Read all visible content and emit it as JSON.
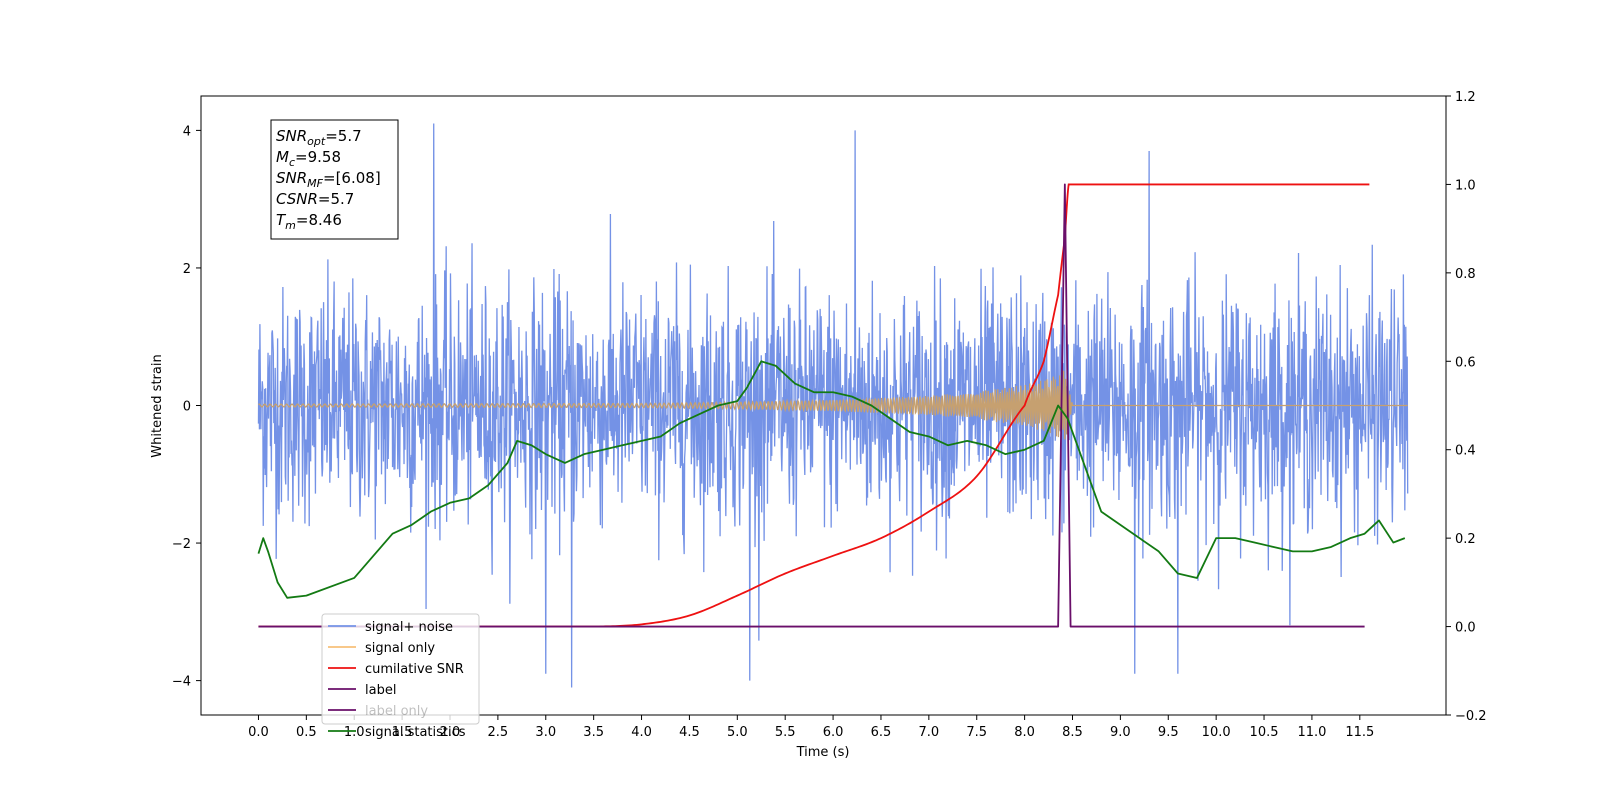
{
  "chart_data": {
    "type": "line",
    "xlabel": "Time (s)",
    "ylabel": "Whitened strain",
    "xlim": [
      -0.6,
      12.4
    ],
    "x_ticks": [
      "0.0",
      "0.5",
      "1.0",
      "1.5",
      "2.0",
      "2.5",
      "3.0",
      "3.5",
      "4.0",
      "4.5",
      "5.0",
      "5.5",
      "6.0",
      "6.5",
      "7.0",
      "7.5",
      "8.0",
      "8.5",
      "9.0",
      "9.5",
      "10.0",
      "10.5",
      "11.0",
      "11.5"
    ],
    "x_tick_values": [
      0.0,
      0.5,
      1.0,
      1.5,
      2.0,
      2.5,
      3.0,
      3.5,
      4.0,
      4.5,
      5.0,
      5.5,
      6.0,
      6.5,
      7.0,
      7.5,
      8.0,
      8.5,
      9.0,
      9.5,
      10.0,
      10.5,
      11.0,
      11.5
    ],
    "ylim_left": [
      -4.5,
      4.5
    ],
    "y_ticks_left": [
      "4",
      "2",
      "0",
      "−2",
      "−4"
    ],
    "y_tick_values_left": [
      4,
      2,
      0,
      -2,
      -4
    ],
    "ylim_right": [
      -0.2,
      1.2
    ],
    "y_ticks_right": [
      "1.2",
      "1.0",
      "0.8",
      "0.6",
      "0.4",
      "0.2",
      "0.0",
      "−0.2"
    ],
    "y_tick_values_right": [
      1.2,
      1.0,
      0.8,
      0.6,
      0.4,
      0.2,
      0.0,
      -0.2
    ],
    "info_box": [
      {
        "base": "SNR",
        "sub": "opt",
        "rest": "=5.7"
      },
      {
        "base": "M",
        "sub": "c",
        "rest": "=9.58"
      },
      {
        "base": "SNR",
        "sub": "MF",
        "rest": "=[6.08]"
      },
      {
        "base": "CSNR",
        "sub": "",
        "rest": "=5.7"
      },
      {
        "base": "T",
        "sub": "m",
        "rest": "=8.46"
      }
    ],
    "legend": {
      "placement": "lower-left",
      "entries": [
        {
          "label": "signal+ noise",
          "color": "#7492e6"
        },
        {
          "label": "signal only",
          "color": "#f7c07a"
        },
        {
          "label": "cumilative SNR",
          "color": "#ee1111"
        },
        {
          "label": "label",
          "color": "#6a0f6a"
        },
        {
          "label": "label only",
          "color": "#6a0f6a",
          "faded": true
        },
        {
          "label": "signal statistics",
          "color": "#137a13"
        }
      ]
    },
    "series": [
      {
        "name": "signal+ noise",
        "axis": "left",
        "color": "#7492e6",
        "kind": "noise-band",
        "t_start": 0.0,
        "t_end": 12.0,
        "rms": 0.85,
        "notable_peaks": [
          {
            "x": 1.83,
            "y": 4.1
          },
          {
            "x": 6.23,
            "y": 4.0
          },
          {
            "x": 9.3,
            "y": 3.7
          },
          {
            "x": 3.27,
            "y": -4.1
          },
          {
            "x": 5.13,
            "y": -4.0
          },
          {
            "x": 9.15,
            "y": -3.9
          },
          {
            "x": 9.6,
            "y": -3.9
          },
          {
            "x": 3.0,
            "y": -3.9
          }
        ]
      },
      {
        "name": "signal only",
        "axis": "left",
        "color": "#c6a070",
        "kind": "chirp-envelope",
        "envelope": {
          "x": [
            0.0,
            4.0,
            5.0,
            6.0,
            7.0,
            7.5,
            8.0,
            8.3,
            8.42,
            8.46,
            8.5,
            12.0
          ],
          "y": [
            0.02,
            0.03,
            0.05,
            0.08,
            0.14,
            0.2,
            0.3,
            0.42,
            0.55,
            0.3,
            0.0,
            0.0
          ]
        }
      },
      {
        "name": "cumilative SNR",
        "axis": "right",
        "color": "#ee1111",
        "x": [
          0.0,
          3.5,
          4.0,
          4.5,
          5.0,
          5.5,
          6.0,
          6.5,
          7.0,
          7.5,
          8.0,
          8.2,
          8.35,
          8.42,
          8.46,
          11.6
        ],
        "y": [
          0.0,
          0.0,
          0.005,
          0.025,
          0.07,
          0.12,
          0.16,
          0.2,
          0.26,
          0.34,
          0.5,
          0.6,
          0.75,
          0.88,
          1.0,
          1.0
        ]
      },
      {
        "name": "label",
        "axis": "right",
        "color": "#6a0f6a",
        "x": [
          0.0,
          8.35,
          8.42,
          8.48,
          11.55
        ],
        "y": [
          0.0,
          0.0,
          1.0,
          0.0,
          0.0
        ]
      },
      {
        "name": "signal statistics",
        "axis": "right",
        "color": "#137a13",
        "x": [
          0.0,
          0.05,
          0.1,
          0.2,
          0.3,
          0.5,
          1.0,
          1.2,
          1.4,
          1.6,
          1.8,
          2.0,
          2.2,
          2.4,
          2.6,
          2.7,
          2.85,
          3.0,
          3.2,
          3.4,
          3.6,
          3.8,
          4.0,
          4.2,
          4.4,
          4.6,
          4.8,
          5.0,
          5.1,
          5.25,
          5.4,
          5.6,
          5.8,
          6.0,
          6.2,
          6.4,
          6.6,
          6.8,
          7.0,
          7.2,
          7.4,
          7.6,
          7.8,
          8.0,
          8.2,
          8.35,
          8.45,
          8.6,
          8.8,
          9.0,
          9.2,
          9.4,
          9.6,
          9.8,
          10.0,
          10.2,
          10.4,
          10.6,
          10.8,
          11.0,
          11.2,
          11.4,
          11.55,
          11.7,
          11.85,
          11.97
        ],
        "y": [
          0.165,
          0.2,
          0.17,
          0.1,
          0.065,
          0.07,
          0.11,
          0.16,
          0.21,
          0.23,
          0.26,
          0.28,
          0.29,
          0.32,
          0.37,
          0.42,
          0.41,
          0.39,
          0.37,
          0.39,
          0.4,
          0.41,
          0.42,
          0.43,
          0.46,
          0.48,
          0.5,
          0.51,
          0.54,
          0.6,
          0.59,
          0.55,
          0.53,
          0.53,
          0.52,
          0.5,
          0.47,
          0.44,
          0.43,
          0.41,
          0.42,
          0.41,
          0.39,
          0.4,
          0.42,
          0.5,
          0.47,
          0.38,
          0.26,
          0.23,
          0.2,
          0.17,
          0.12,
          0.11,
          0.2,
          0.2,
          0.19,
          0.18,
          0.17,
          0.17,
          0.18,
          0.2,
          0.21,
          0.24,
          0.19,
          0.2
        ]
      }
    ]
  }
}
